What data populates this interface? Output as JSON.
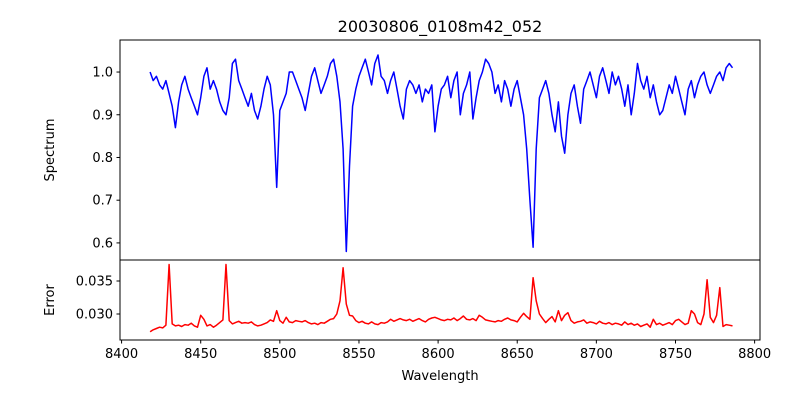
{
  "chart_data": [
    {
      "type": "line",
      "title": "20030806_0108m42_052",
      "xlabel": "",
      "ylabel": "Spectrum",
      "xlim": [
        8399,
        8803.4
      ],
      "ylim": [
        0.56,
        1.075
      ],
      "yticks": [
        0.6,
        0.7,
        0.8,
        0.9,
        1.0
      ],
      "ytick_labels": [
        "0.6",
        "0.7",
        "0.8",
        "0.9",
        "1.0"
      ],
      "grid": false,
      "color": "#0000ff",
      "x_start": 8418,
      "x_step": 2,
      "values": [
        1.0,
        0.98,
        0.99,
        0.97,
        0.96,
        0.98,
        0.95,
        0.92,
        0.87,
        0.93,
        0.97,
        0.99,
        0.96,
        0.94,
        0.92,
        0.9,
        0.94,
        0.99,
        1.01,
        0.96,
        0.98,
        0.96,
        0.93,
        0.91,
        0.9,
        0.94,
        1.02,
        1.03,
        0.98,
        0.96,
        0.94,
        0.92,
        0.95,
        0.91,
        0.89,
        0.92,
        0.96,
        0.99,
        0.97,
        0.9,
        0.73,
        0.91,
        0.93,
        0.95,
        1.0,
        1.0,
        0.98,
        0.96,
        0.94,
        0.91,
        0.95,
        0.99,
        1.01,
        0.98,
        0.95,
        0.97,
        0.99,
        1.02,
        1.03,
        0.99,
        0.93,
        0.82,
        0.58,
        0.78,
        0.92,
        0.96,
        0.99,
        1.01,
        1.03,
        1.0,
        0.97,
        1.02,
        1.04,
        0.99,
        0.98,
        0.95,
        0.98,
        1.0,
        0.96,
        0.92,
        0.89,
        0.96,
        0.98,
        0.97,
        0.95,
        0.97,
        0.93,
        0.96,
        0.95,
        0.97,
        0.86,
        0.92,
        0.96,
        0.97,
        0.99,
        0.94,
        0.98,
        1.0,
        0.9,
        0.95,
        0.97,
        1.0,
        0.89,
        0.94,
        0.98,
        1.0,
        1.03,
        1.02,
        1.0,
        0.95,
        0.97,
        0.93,
        0.98,
        0.96,
        0.92,
        0.96,
        0.98,
        0.94,
        0.9,
        0.82,
        0.7,
        0.59,
        0.82,
        0.94,
        0.96,
        0.98,
        0.95,
        0.9,
        0.86,
        0.93,
        0.85,
        0.81,
        0.9,
        0.95,
        0.97,
        0.92,
        0.88,
        0.96,
        0.98,
        1.0,
        0.97,
        0.94,
        0.99,
        1.01,
        0.98,
        0.95,
        1.0,
        0.97,
        0.99,
        0.96,
        0.92,
        0.97,
        0.9,
        0.95,
        1.02,
        0.98,
        0.96,
        0.99,
        0.94,
        0.97,
        0.93,
        0.9,
        0.91,
        0.94,
        0.97,
        0.95,
        0.99,
        0.96,
        0.93,
        0.9,
        0.96,
        0.98,
        0.94,
        0.97,
        0.99,
        1.0,
        0.97,
        0.95,
        0.97,
        0.99,
        1.0,
        0.98,
        1.01,
        1.02,
        1.01
      ]
    },
    {
      "type": "line",
      "title": "",
      "xlabel": "Wavelength",
      "ylabel": "Error",
      "xlim": [
        8399,
        8803.4
      ],
      "ylim": [
        0.02606,
        0.03818
      ],
      "xticks": [
        8400,
        8450,
        8500,
        8550,
        8600,
        8650,
        8700,
        8750,
        8800
      ],
      "xtick_labels": [
        "8400",
        "8450",
        "8500",
        "8550",
        "8600",
        "8650",
        "8700",
        "8750",
        "8800"
      ],
      "yticks": [
        0.03,
        0.035
      ],
      "ytick_labels": [
        "0.030",
        "0.035"
      ],
      "grid": false,
      "color": "#ff0000",
      "x_start": 8418,
      "x_step": 2,
      "values": [
        0.0273,
        0.0276,
        0.0278,
        0.028,
        0.0279,
        0.0283,
        0.0375,
        0.0285,
        0.0282,
        0.0283,
        0.0281,
        0.0284,
        0.0283,
        0.0286,
        0.0282,
        0.028,
        0.0298,
        0.0292,
        0.0282,
        0.0284,
        0.028,
        0.0283,
        0.0287,
        0.0291,
        0.0375,
        0.029,
        0.0285,
        0.0287,
        0.0289,
        0.0286,
        0.0287,
        0.0286,
        0.0288,
        0.0284,
        0.0282,
        0.0283,
        0.0285,
        0.0287,
        0.0291,
        0.0289,
        0.0305,
        0.029,
        0.0286,
        0.0295,
        0.0288,
        0.0287,
        0.029,
        0.0289,
        0.0288,
        0.029,
        0.0287,
        0.0285,
        0.0286,
        0.0284,
        0.0287,
        0.0286,
        0.0289,
        0.0292,
        0.0293,
        0.03,
        0.032,
        0.037,
        0.0315,
        0.0298,
        0.0297,
        0.029,
        0.0287,
        0.0289,
        0.0286,
        0.0285,
        0.0288,
        0.0285,
        0.0284,
        0.0287,
        0.0286,
        0.0288,
        0.0292,
        0.0289,
        0.0291,
        0.0293,
        0.0291,
        0.029,
        0.0292,
        0.0289,
        0.0291,
        0.0293,
        0.029,
        0.0288,
        0.0292,
        0.0294,
        0.0295,
        0.0293,
        0.0291,
        0.029,
        0.0292,
        0.0291,
        0.0294,
        0.029,
        0.0293,
        0.0297,
        0.0292,
        0.0291,
        0.0293,
        0.029,
        0.0298,
        0.0295,
        0.0291,
        0.029,
        0.0289,
        0.0288,
        0.029,
        0.0289,
        0.0292,
        0.0294,
        0.0291,
        0.029,
        0.0288,
        0.0295,
        0.0301,
        0.0296,
        0.0292,
        0.0355,
        0.032,
        0.03,
        0.0293,
        0.0287,
        0.0292,
        0.0296,
        0.0288,
        0.0305,
        0.029,
        0.0298,
        0.0302,
        0.029,
        0.0286,
        0.0288,
        0.0289,
        0.0291,
        0.0286,
        0.0288,
        0.0287,
        0.0285,
        0.0289,
        0.0286,
        0.0285,
        0.0287,
        0.0284,
        0.0286,
        0.0285,
        0.0283,
        0.0288,
        0.0284,
        0.0286,
        0.0283,
        0.0285,
        0.0281,
        0.0283,
        0.0285,
        0.028,
        0.0292,
        0.0284,
        0.0286,
        0.0283,
        0.0285,
        0.0287,
        0.0284,
        0.029,
        0.0292,
        0.0288,
        0.0284,
        0.0286,
        0.0305,
        0.03,
        0.0287,
        0.0284,
        0.03,
        0.0352,
        0.0295,
        0.0287,
        0.0298,
        0.034,
        0.0281,
        0.0284,
        0.0283,
        0.0282
      ]
    }
  ]
}
